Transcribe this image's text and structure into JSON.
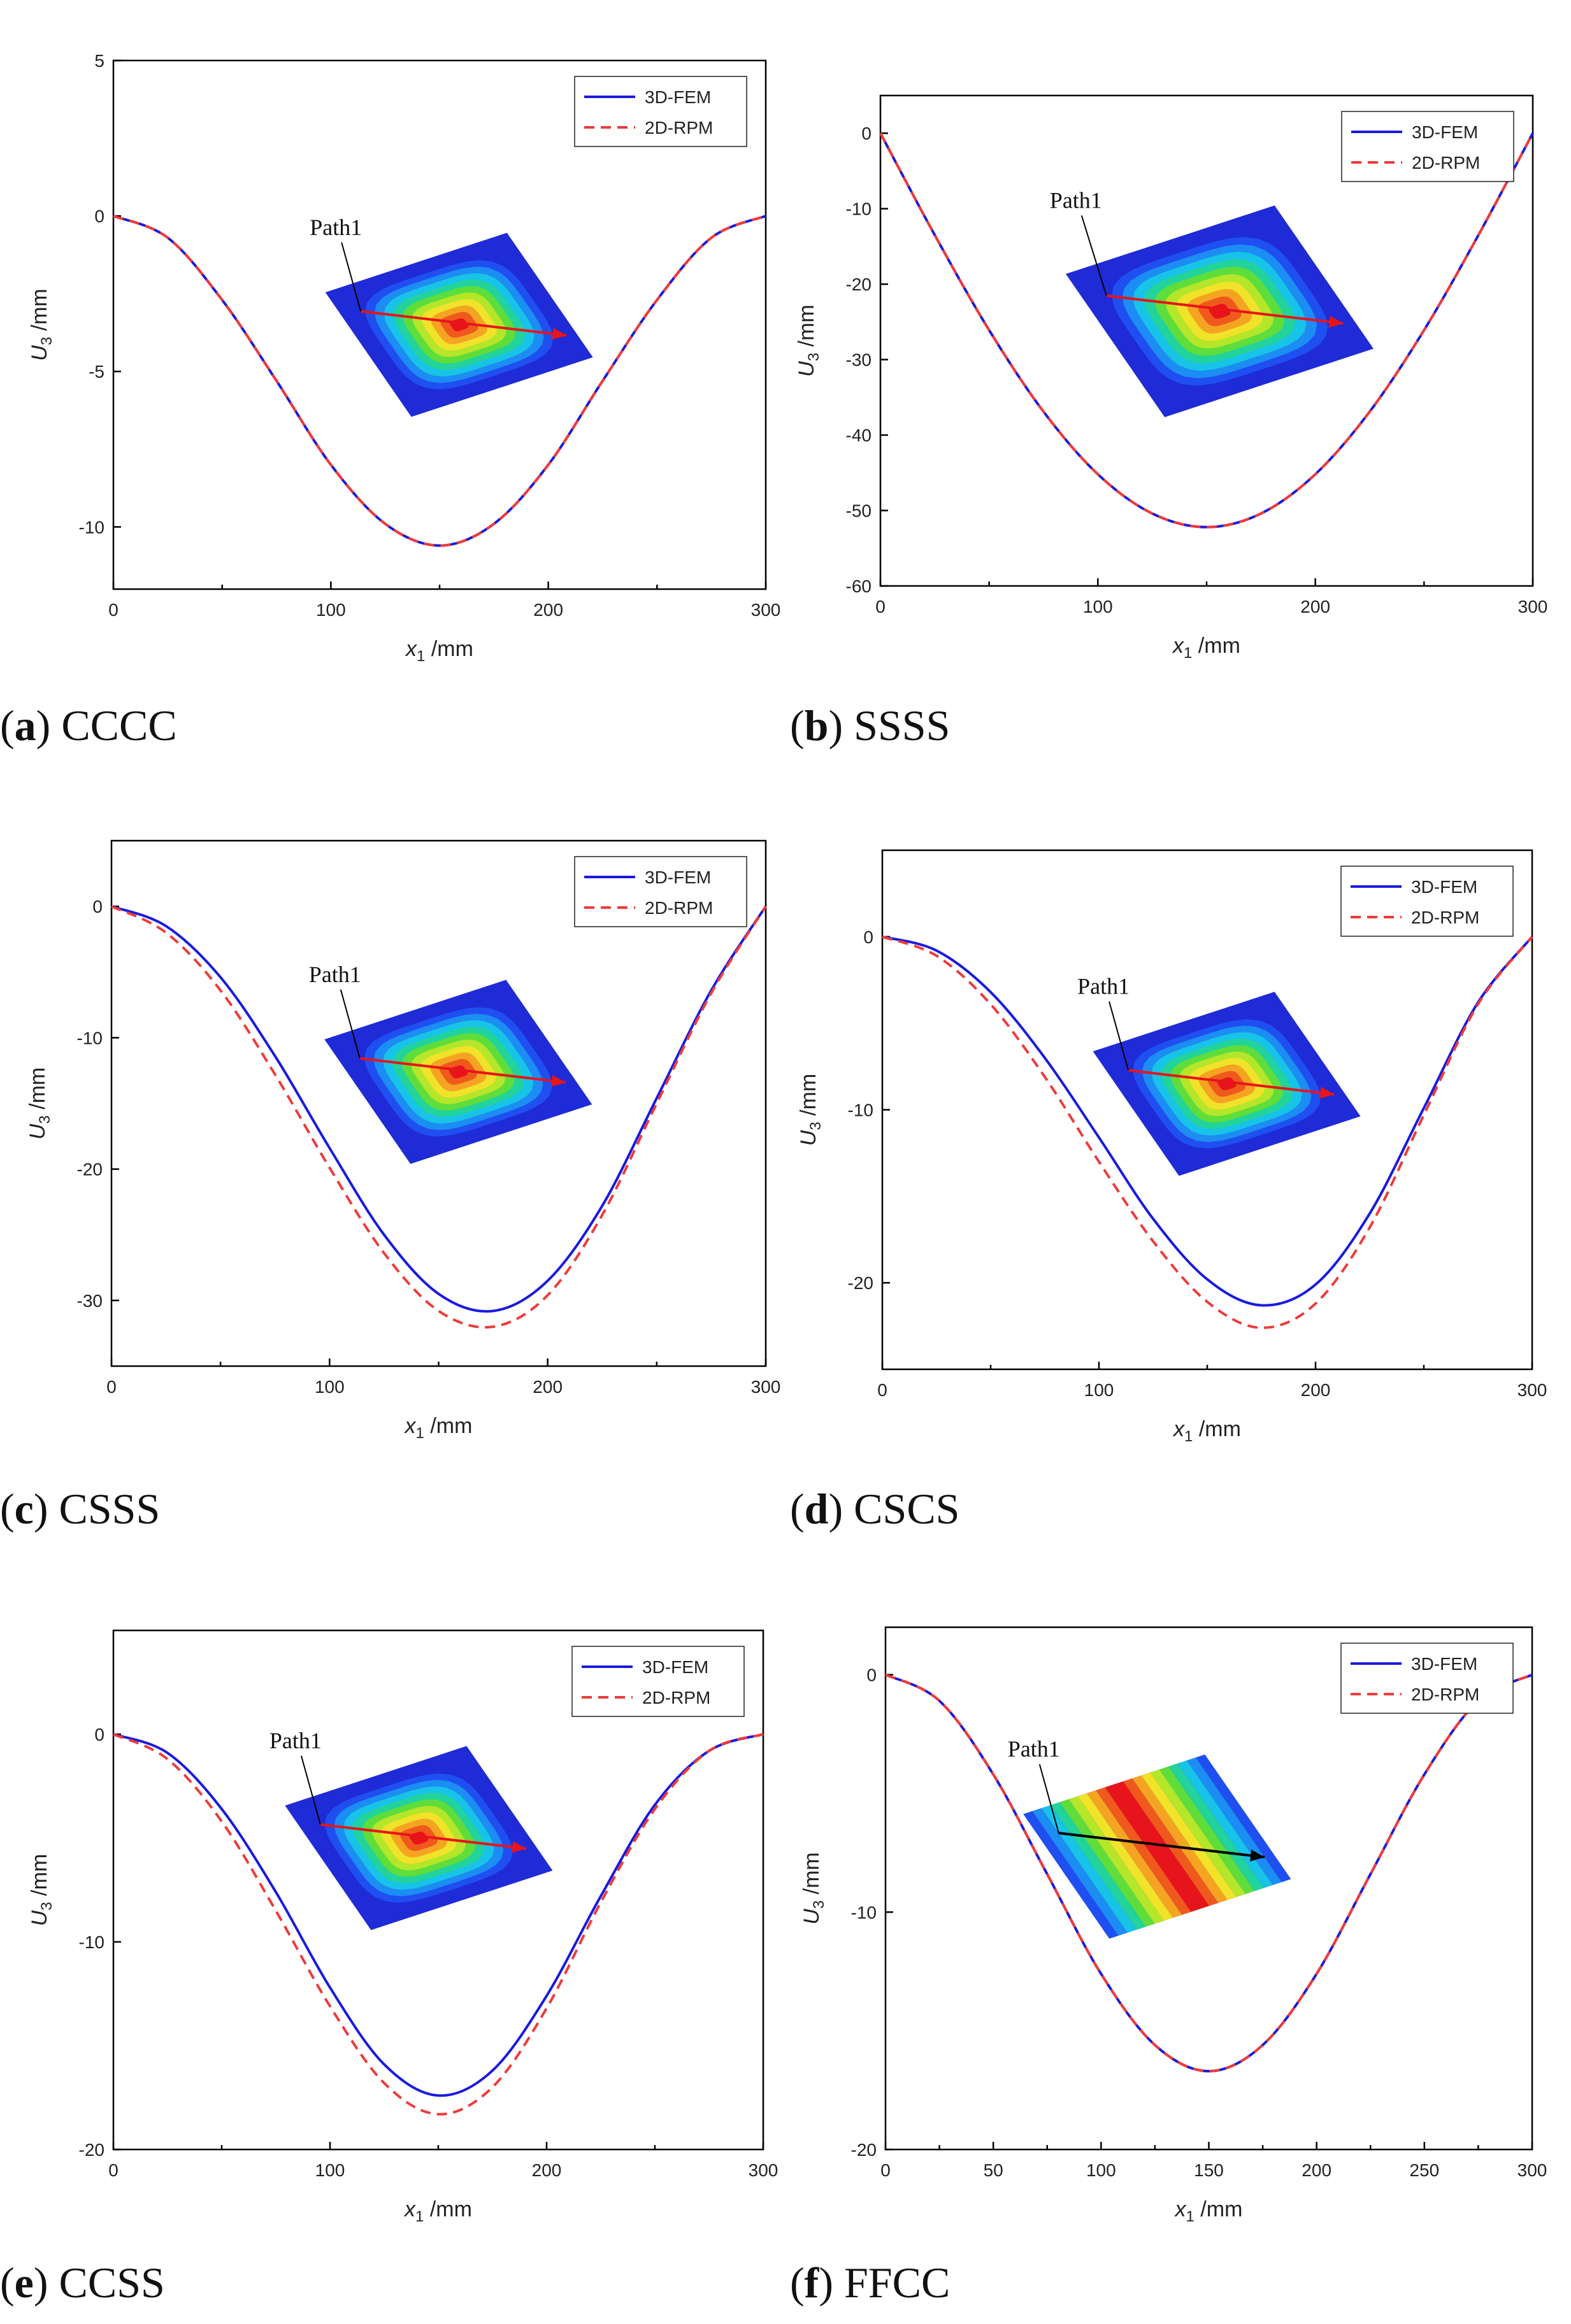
{
  "legend": {
    "fem": "3D-FEM",
    "rpm": "2D-RPM"
  },
  "path_label": "Path1",
  "colors": {
    "fem": "#1a1adf",
    "rpm": "#ee3b3b",
    "contour_low": "#1f2bd6",
    "contour_high": "#e8141b"
  },
  "chart_data": [
    {
      "id": "a",
      "type": "line",
      "caption_letter": "a",
      "caption_text": "CCCC",
      "xlabel": "x1 /mm",
      "ylabel": "U3 /mm",
      "xlim": [
        0,
        300
      ],
      "ylim": [
        -12,
        5
      ],
      "xticks": [
        0,
        100,
        200,
        300
      ],
      "yticks": [
        5,
        0,
        -5,
        -10
      ],
      "series": [
        {
          "name": "3D-FEM",
          "x": [
            0,
            25,
            50,
            75,
            100,
            125,
            150,
            175,
            200,
            225,
            250,
            275,
            300
          ],
          "y": [
            0,
            -0.7,
            -2.7,
            -5.3,
            -8.0,
            -9.9,
            -10.6,
            -9.9,
            -8.0,
            -5.3,
            -2.7,
            -0.7,
            0
          ]
        },
        {
          "name": "2D-RPM",
          "x": [
            0,
            25,
            50,
            75,
            100,
            125,
            150,
            175,
            200,
            225,
            250,
            275,
            300
          ],
          "y": [
            0,
            -0.7,
            -2.7,
            -5.3,
            -8.0,
            -9.9,
            -10.6,
            -9.9,
            -8.0,
            -5.3,
            -2.7,
            -0.7,
            0
          ]
        }
      ]
    },
    {
      "id": "b",
      "type": "line",
      "caption_letter": "b",
      "caption_text": "SSSS",
      "xlabel": "x1 /mm",
      "ylabel": "U3 /mm",
      "xlim": [
        0,
        300
      ],
      "ylim": [
        -60,
        5
      ],
      "xticks": [
        0,
        100,
        200,
        300
      ],
      "yticks": [
        0,
        -10,
        -20,
        -30,
        -40,
        -50,
        -60
      ],
      "series": [
        {
          "name": "3D-FEM",
          "x": [
            0,
            25,
            50,
            75,
            100,
            125,
            150,
            175,
            200,
            225,
            250,
            275,
            300
          ],
          "y": [
            0,
            -13.5,
            -26.1,
            -36.9,
            -45.2,
            -50.4,
            -52.2,
            -50.4,
            -45.2,
            -36.9,
            -26.1,
            -13.5,
            0
          ]
        },
        {
          "name": "2D-RPM",
          "x": [
            0,
            25,
            50,
            75,
            100,
            125,
            150,
            175,
            200,
            225,
            250,
            275,
            300
          ],
          "y": [
            0,
            -13.5,
            -26.1,
            -36.9,
            -45.2,
            -50.4,
            -52.2,
            -50.4,
            -45.2,
            -36.9,
            -26.1,
            -13.5,
            0
          ]
        }
      ]
    },
    {
      "id": "c",
      "type": "line",
      "caption_letter": "c",
      "caption_text": "CSSS",
      "xlabel": "x1 /mm",
      "ylabel": "U3 /mm",
      "xlim": [
        0,
        300
      ],
      "ylim": [
        -35,
        5
      ],
      "xticks": [
        0,
        100,
        200,
        300
      ],
      "yticks": [
        0,
        -10,
        -20,
        -30
      ],
      "series": [
        {
          "name": "3D-FEM",
          "x": [
            0,
            25,
            50,
            75,
            100,
            125,
            150,
            175,
            200,
            225,
            250,
            275,
            300
          ],
          "y": [
            0,
            -1.5,
            -5.4,
            -11.4,
            -18.4,
            -25.0,
            -29.5,
            -30.8,
            -28.5,
            -22.8,
            -14.6,
            -6.4,
            0
          ]
        },
        {
          "name": "2D-RPM",
          "x": [
            0,
            25,
            50,
            75,
            100,
            125,
            150,
            175,
            200,
            225,
            250,
            275,
            300
          ],
          "y": [
            0,
            -2.0,
            -6.4,
            -12.8,
            -19.9,
            -26.4,
            -30.8,
            -32.0,
            -29.6,
            -23.5,
            -15.0,
            -6.6,
            0
          ]
        }
      ]
    },
    {
      "id": "d",
      "type": "line",
      "caption_letter": "d",
      "caption_text": "CSCS",
      "xlabel": "x1 /mm",
      "ylabel": "U3 /mm",
      "xlim": [
        0,
        300
      ],
      "ylim": [
        -25,
        5
      ],
      "xticks": [
        0,
        100,
        200,
        300
      ],
      "yticks": [
        0,
        -10,
        -20
      ],
      "series": [
        {
          "name": "3D-FEM",
          "x": [
            0,
            25,
            50,
            75,
            100,
            125,
            150,
            175,
            200,
            225,
            250,
            275,
            300
          ],
          "y": [
            0,
            -0.8,
            -3.2,
            -7.0,
            -11.6,
            -16.3,
            -19.8,
            -21.3,
            -20.1,
            -16.0,
            -9.9,
            -3.8,
            0
          ]
        },
        {
          "name": "2D-RPM",
          "x": [
            0,
            25,
            50,
            75,
            100,
            125,
            150,
            175,
            200,
            225,
            250,
            275,
            300
          ],
          "y": [
            0,
            -1.1,
            -3.9,
            -8.1,
            -13.0,
            -17.6,
            -21.1,
            -22.6,
            -21.2,
            -16.8,
            -10.3,
            -3.9,
            0
          ]
        }
      ]
    },
    {
      "id": "e",
      "type": "line",
      "caption_letter": "e",
      "caption_text": "CCSS",
      "xlabel": "x1 /mm",
      "ylabel": "U3 /mm",
      "xlim": [
        0,
        300
      ],
      "ylim": [
        -20,
        5
      ],
      "xticks": [
        0,
        100,
        200,
        300
      ],
      "yticks": [
        0,
        -10,
        -20
      ],
      "series": [
        {
          "name": "3D-FEM",
          "x": [
            0,
            25,
            50,
            75,
            100,
            125,
            150,
            175,
            200,
            225,
            250,
            275,
            300
          ],
          "y": [
            0,
            -0.9,
            -3.6,
            -7.6,
            -12.2,
            -15.9,
            -17.4,
            -16.2,
            -12.6,
            -7.8,
            -3.4,
            -0.8,
            0
          ]
        },
        {
          "name": "2D-RPM",
          "x": [
            0,
            25,
            50,
            75,
            100,
            125,
            150,
            175,
            200,
            225,
            250,
            275,
            300
          ],
          "y": [
            0,
            -1.2,
            -4.2,
            -8.5,
            -13.1,
            -16.8,
            -18.3,
            -17.0,
            -13.2,
            -8.1,
            -3.6,
            -0.8,
            0
          ]
        }
      ]
    },
    {
      "id": "f",
      "type": "line",
      "caption_letter": "f",
      "caption_text": "FFCC",
      "xlabel": "x1 /mm",
      "ylabel": "U3 /mm",
      "xlim": [
        0,
        300
      ],
      "ylim": [
        -20,
        2
      ],
      "xticks": [
        0,
        50,
        100,
        150,
        200,
        250,
        300
      ],
      "yticks": [
        0,
        -10,
        -20
      ],
      "series": [
        {
          "name": "3D-FEM",
          "x": [
            0,
            25,
            50,
            75,
            100,
            125,
            150,
            175,
            200,
            225,
            250,
            275,
            300
          ],
          "y": [
            0,
            -1.1,
            -4.2,
            -8.4,
            -12.6,
            -15.6,
            -16.7,
            -15.6,
            -12.6,
            -8.4,
            -4.2,
            -1.1,
            0
          ]
        },
        {
          "name": "2D-RPM",
          "x": [
            0,
            25,
            50,
            75,
            100,
            125,
            150,
            175,
            200,
            225,
            250,
            275,
            300
          ],
          "y": [
            0,
            -1.1,
            -4.2,
            -8.4,
            -12.6,
            -15.6,
            -16.7,
            -15.6,
            -12.6,
            -8.4,
            -4.2,
            -1.1,
            0
          ]
        }
      ]
    }
  ]
}
